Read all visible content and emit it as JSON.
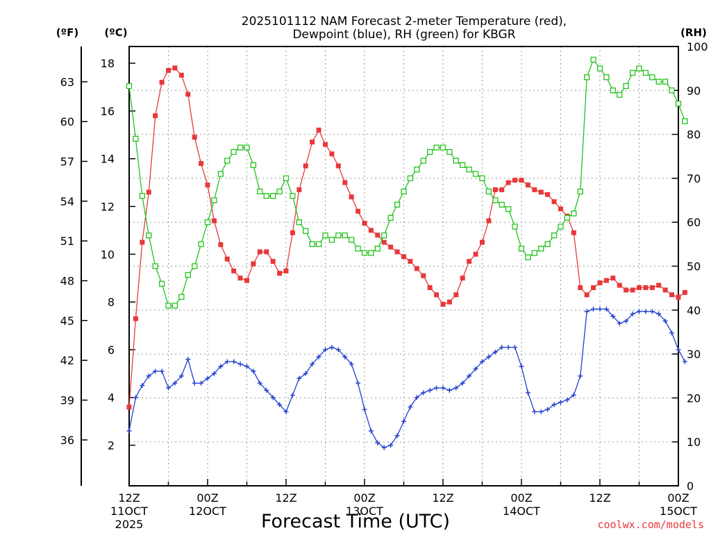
{
  "chart_data": {
    "type": "line",
    "title_line1": "2025101112 NAM Forecast 2-meter Temperature (red),",
    "title_line2": "Dewpoint (blue), RH (green) for KBGR",
    "units_f": "(ºF)",
    "units_c": "(ºC)",
    "units_rh": "(RH)",
    "xlabel": "Forecast Time (UTC)",
    "watermark": "coolwx.com/models",
    "xlim_hours": [
      0,
      84
    ],
    "ylim_c": [
      0.3,
      18.7
    ],
    "ylim_rh": [
      0,
      100
    ],
    "c_ticks": [
      "2",
      "4",
      "6",
      "8",
      "10",
      "12",
      "14",
      "16",
      "18"
    ],
    "f_ticks": [
      "36",
      "39",
      "42",
      "45",
      "48",
      "51",
      "54",
      "57",
      "60",
      "63"
    ],
    "rh_ticks": [
      "0",
      "10",
      "20",
      "30",
      "40",
      "50",
      "60",
      "70",
      "80",
      "90",
      "100"
    ],
    "x_ticks": [
      {
        "h": 0,
        "l1": "12Z",
        "l2": "11OCT",
        "l3": "2025"
      },
      {
        "h": 12,
        "l1": "00Z",
        "l2": "12OCT",
        "l3": ""
      },
      {
        "h": 24,
        "l1": "12Z",
        "l2": "",
        "l3": ""
      },
      {
        "h": 36,
        "l1": "00Z",
        "l2": "13OCT",
        "l3": ""
      },
      {
        "h": 48,
        "l1": "12Z",
        "l2": "",
        "l3": ""
      },
      {
        "h": 60,
        "l1": "00Z",
        "l2": "14OCT",
        "l3": ""
      },
      {
        "h": 72,
        "l1": "12Z",
        "l2": "",
        "l3": ""
      },
      {
        "h": 84,
        "l1": "00Z",
        "l2": "15OCT",
        "l3": ""
      }
    ],
    "series": [
      {
        "name": "Temperature",
        "color": "#e8383a",
        "marker": "filled-square",
        "values": [
          3.6,
          7.3,
          10.5,
          12.6,
          15.8,
          17.2,
          17.7,
          17.8,
          17.5,
          16.7,
          14.9,
          13.8,
          12.9,
          11.4,
          10.4,
          9.8,
          9.3,
          9.0,
          8.9,
          9.6,
          10.1,
          10.1,
          9.7,
          9.2,
          9.3,
          10.9,
          12.7,
          13.7,
          14.7,
          15.2,
          14.6,
          14.2,
          13.7,
          13.0,
          12.4,
          11.8,
          11.3,
          11.0,
          10.8,
          10.5,
          10.3,
          10.1,
          9.9,
          9.7,
          9.4,
          9.1,
          8.6,
          8.3,
          7.9,
          8.0,
          8.3,
          9.0,
          9.7,
          10.0,
          10.5,
          11.4,
          12.7,
          12.7,
          13.0,
          13.1,
          13.1,
          12.9,
          12.7,
          12.6,
          12.5,
          12.2,
          11.9,
          11.6,
          10.9,
          8.6,
          8.3,
          8.6,
          8.8,
          8.9,
          9.0,
          8.7,
          8.5,
          8.5,
          8.6,
          8.6,
          8.6,
          8.7,
          8.5,
          8.3,
          8.2,
          8.4
        ]
      },
      {
        "name": "Dewpoint",
        "color": "#1f3fd0",
        "marker": "plus",
        "values": [
          2.6,
          4.0,
          4.5,
          4.9,
          5.1,
          5.1,
          4.4,
          4.6,
          4.9,
          5.6,
          4.6,
          4.6,
          4.8,
          5.0,
          5.3,
          5.5,
          5.5,
          5.4,
          5.3,
          5.1,
          4.6,
          4.3,
          4.0,
          3.7,
          3.4,
          4.1,
          4.8,
          5.0,
          5.4,
          5.7,
          6.0,
          6.1,
          6.0,
          5.7,
          5.4,
          4.6,
          3.5,
          2.6,
          2.1,
          1.9,
          2.0,
          2.4,
          3.0,
          3.6,
          4.0,
          4.2,
          4.3,
          4.4,
          4.4,
          4.3,
          4.4,
          4.6,
          4.9,
          5.2,
          5.5,
          5.7,
          5.9,
          6.1,
          6.1,
          6.1,
          5.3,
          4.2,
          3.4,
          3.4,
          3.5,
          3.7,
          3.8,
          3.9,
          4.1,
          4.9,
          7.6,
          7.7,
          7.7,
          7.7,
          7.4,
          7.1,
          7.2,
          7.5,
          7.6,
          7.6,
          7.6,
          7.5,
          7.2,
          6.7,
          6.0,
          5.5
        ]
      },
      {
        "name": "RH",
        "color": "#22c21c",
        "marker": "open-square",
        "values": [
          91,
          79,
          66,
          57,
          50,
          46,
          41,
          41,
          43,
          48,
          50,
          55,
          60,
          65,
          71,
          74,
          76,
          77,
          77,
          73,
          67,
          66,
          66,
          67,
          70,
          66,
          60,
          58,
          55,
          55,
          57,
          56,
          57,
          57,
          56,
          54,
          53,
          53,
          54,
          57,
          61,
          64,
          67,
          70,
          72,
          74,
          76,
          77,
          77,
          76,
          74,
          73,
          72,
          71,
          70,
          67,
          65,
          64,
          63,
          59,
          54,
          52,
          53,
          54,
          55,
          57,
          59,
          61,
          62,
          67,
          93,
          97,
          95,
          93,
          90,
          89,
          91,
          94,
          95,
          94,
          93,
          92,
          92,
          90,
          87,
          83
        ]
      }
    ]
  }
}
